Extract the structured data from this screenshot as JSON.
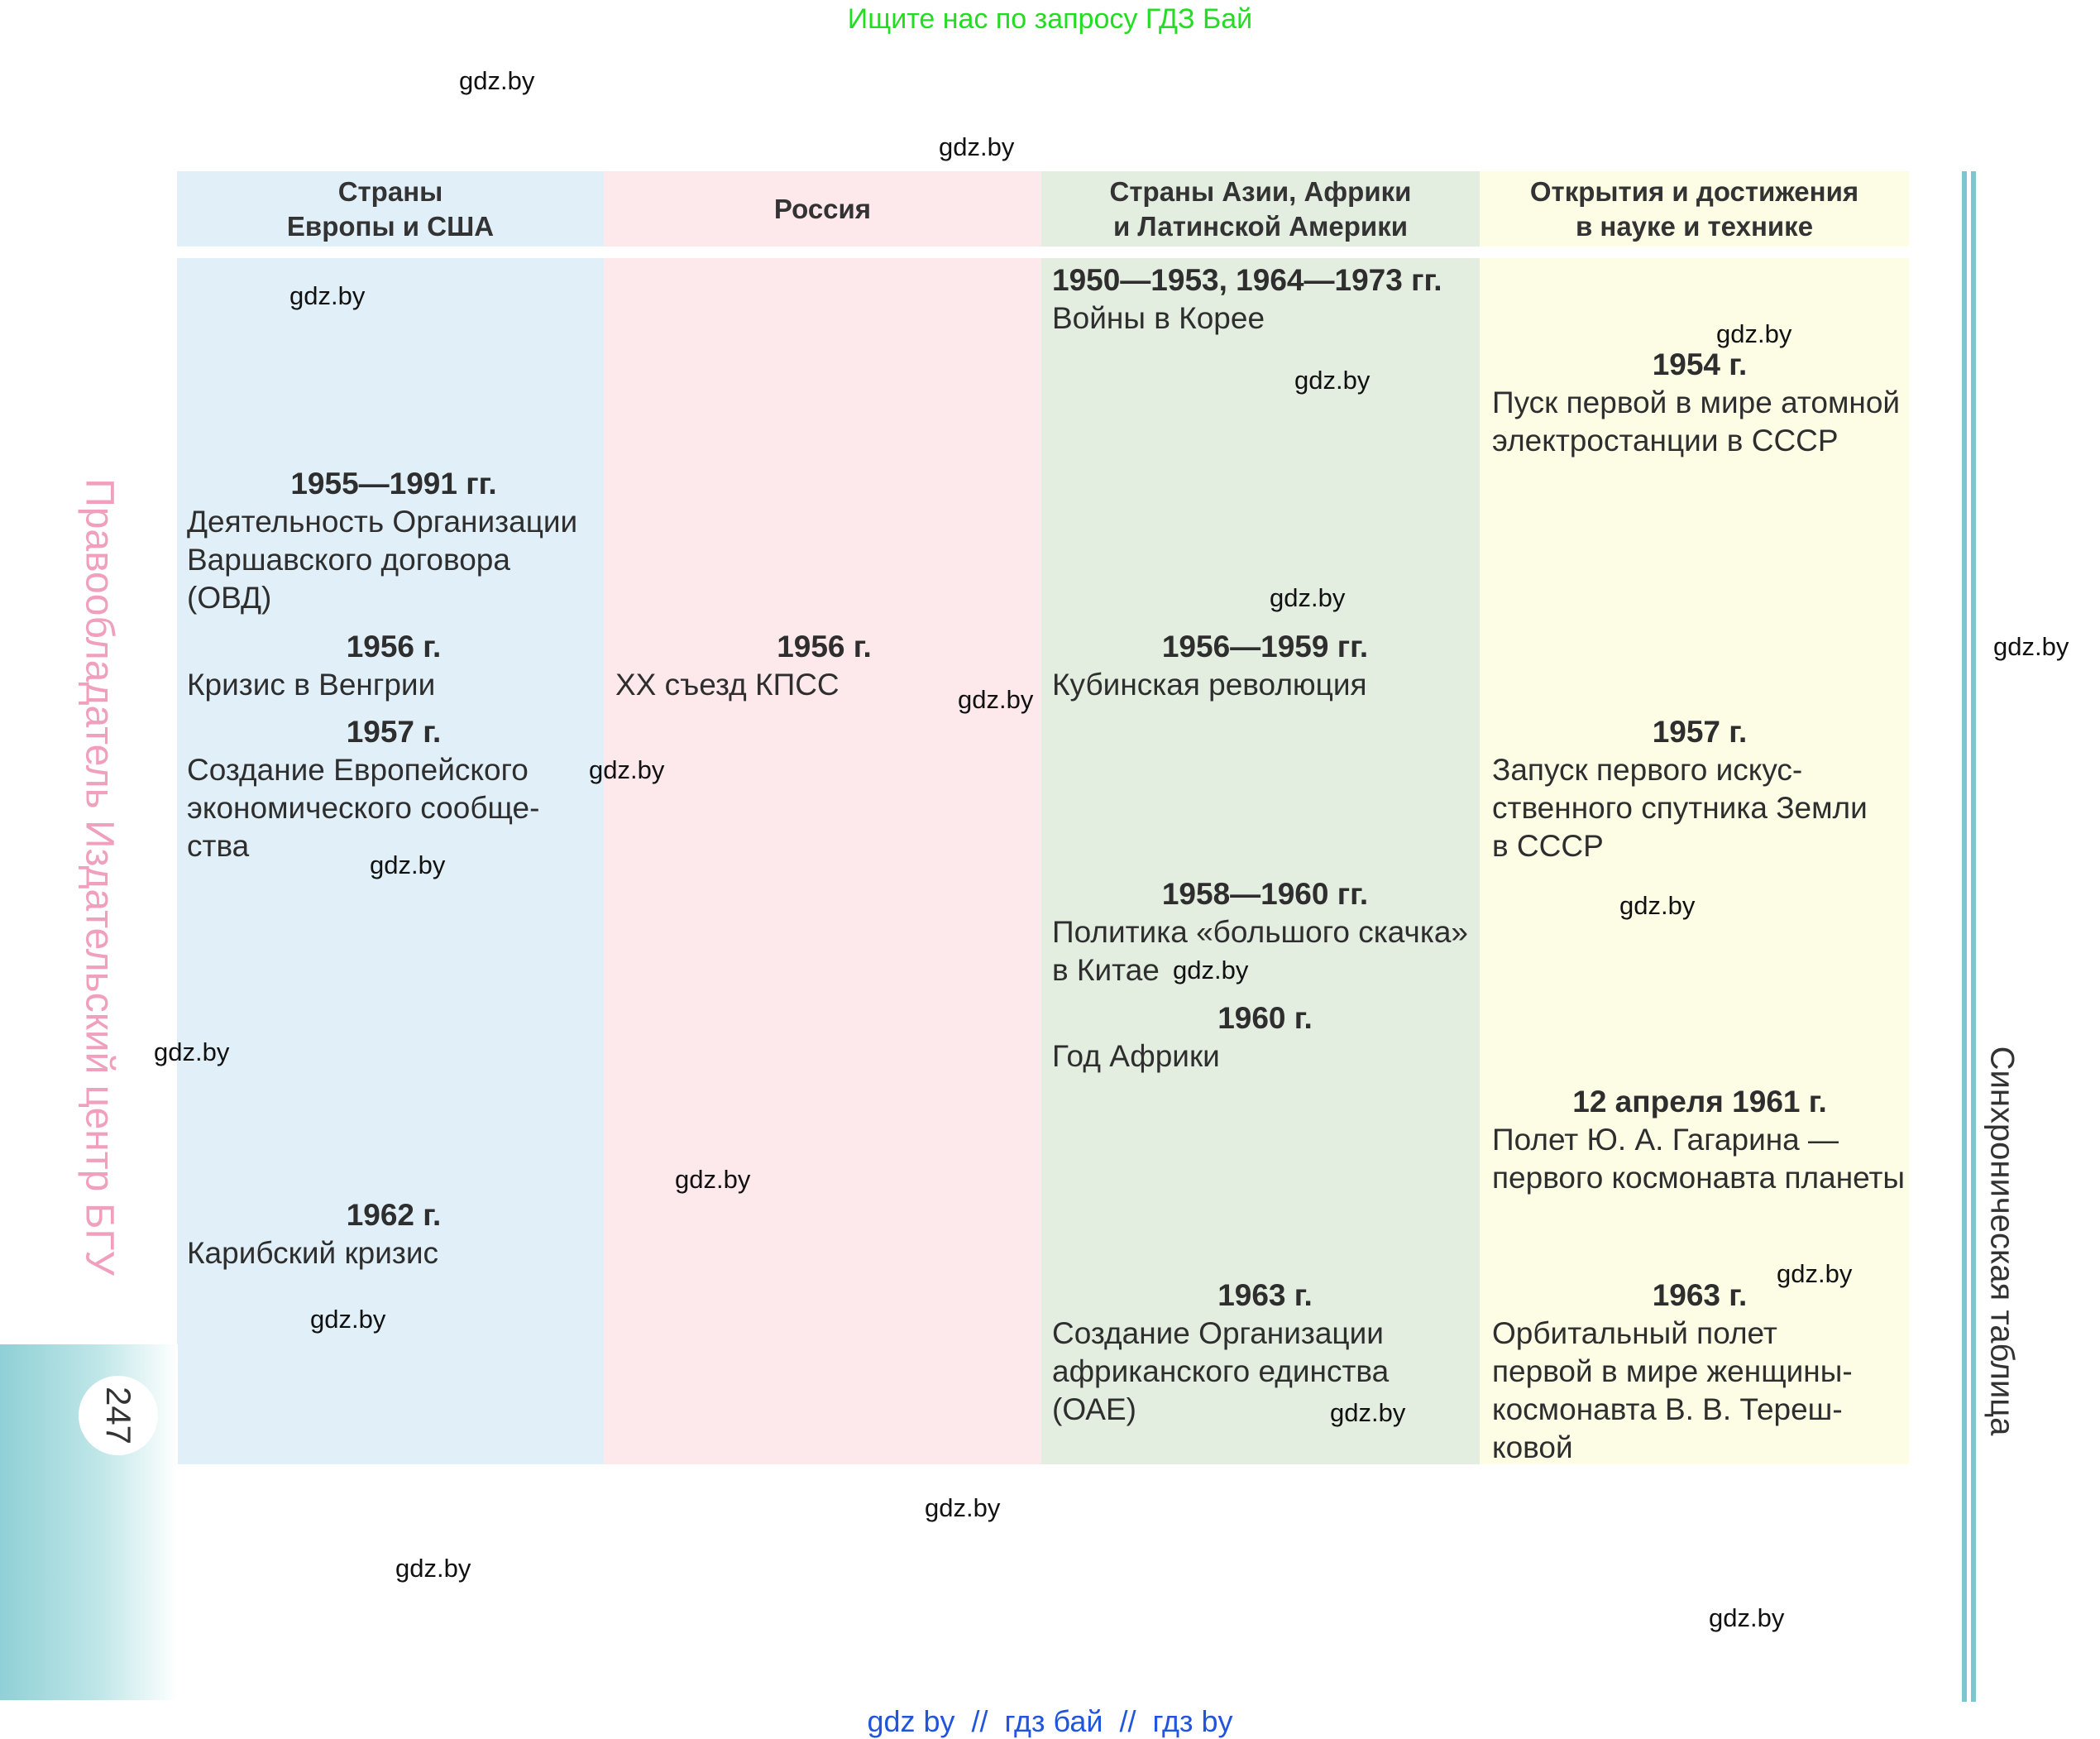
{
  "banner": "Ищите нас по запросу ГДЗ Бай",
  "watermark": "gdz.by",
  "headers": {
    "europe": "Страны\nЕвропы и США",
    "russia": "Россия",
    "asia": "Страны Азии, Африки\nи Латинской Америки",
    "science": "Открытия и достижения\nв науке и технике"
  },
  "europe": [
    {
      "year": "1955—1991 гг.",
      "text": "Деятельность Организации\nВаршавского договора\n(ОВД)"
    },
    {
      "year": "1956 г.",
      "text": "Кризис в Венгрии"
    },
    {
      "year": "1957 г.",
      "text": "Создание Европейского\nэкономического сообще-\nства"
    },
    {
      "year": "1962 г.",
      "text": "Карибский кризис"
    }
  ],
  "russia": [
    {
      "year": "1956 г.",
      "text": "XX съезд КПСС"
    }
  ],
  "asia": [
    {
      "year": "1950—1953, 1964—1973 гг.",
      "text": "Войны в Корее"
    },
    {
      "year": "1956—1959 гг.",
      "text": "Кубинская революция"
    },
    {
      "year": "1958—1960 гг.",
      "text": "Политика «большого скачка»\nв Китае"
    },
    {
      "year": "1960 г.",
      "text": "Год Африки"
    },
    {
      "year": "1963 г.",
      "text": "Создание Организации\nафриканского единства\n(ОАЕ)"
    }
  ],
  "science": [
    {
      "year": "1954 г.",
      "text": "Пуск первой в мире атомной\nэлектростанции в СССР"
    },
    {
      "year": "1957 г.",
      "text": "Запуск первого искус-\nственного спутника Земли\nв СССР"
    },
    {
      "year": "12 апреля 1961 г.",
      "text": "Полет Ю. А. Гагарина —\nпервого космонавта планеты"
    },
    {
      "year": "1963 г.",
      "text": "Орбитальный полет\nпервой в мире женщины-\nкосмонавта В. В. Тереш-\nковой"
    }
  ],
  "side_left": "Правообладатель Издательский центр БГУ",
  "side_right": "Синхроническая таблица",
  "page_number": "247",
  "footer": "gdz by  //  гдз бай  //  гдз by",
  "colors": {
    "europe_bg": "#e1f0f8",
    "russia_bg": "#fde8ec",
    "asia_bg": "#e3ede0",
    "science_bg": "#fdfde6",
    "accent_line": "#7cc6cf",
    "side_left_text": "#f0a0bc"
  }
}
